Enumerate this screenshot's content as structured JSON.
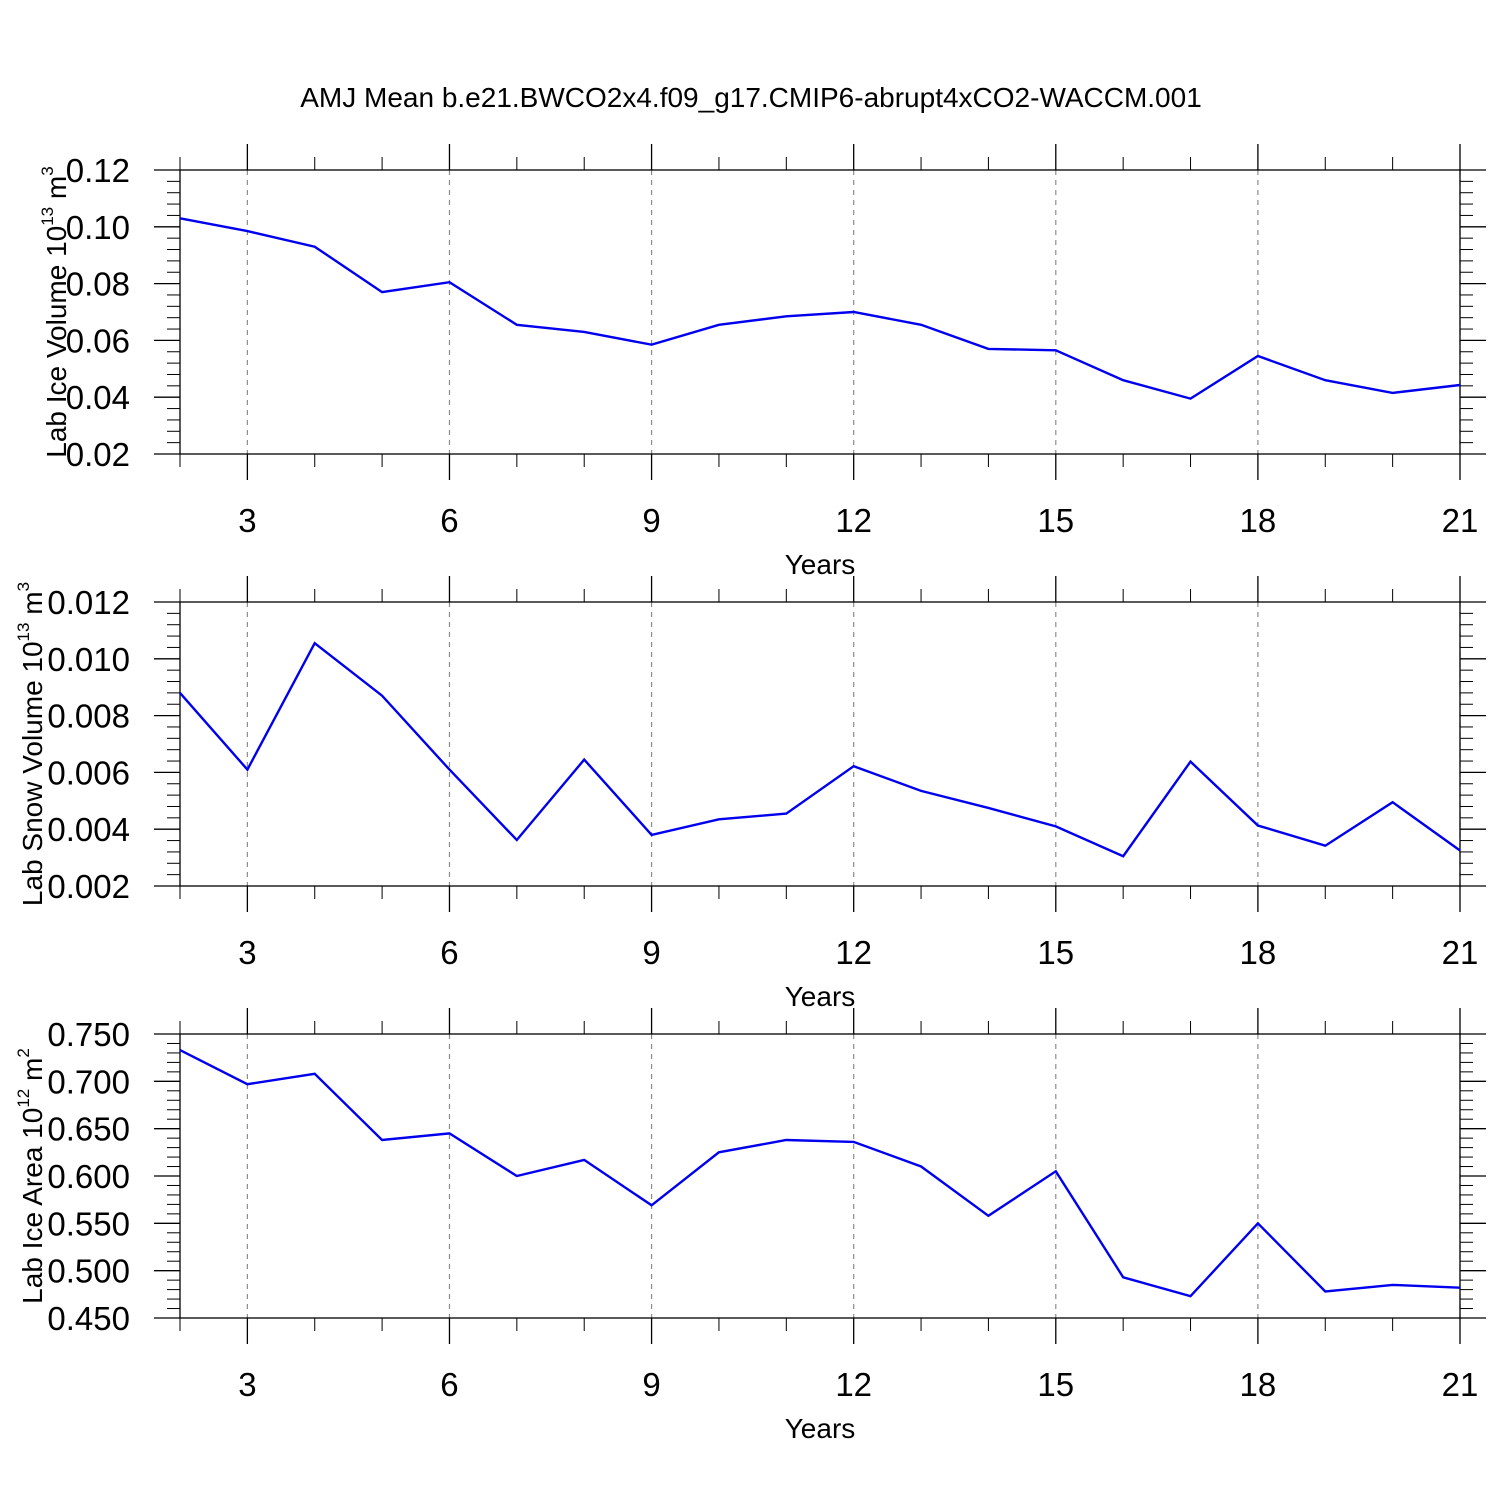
{
  "page": {
    "title": "AMJ Mean b.e21.BWCO2x4.f09_g17.CMIP6-abrupt4xCO2-WACCM.001"
  },
  "colors": {
    "series": "#0000ee",
    "grid": "#8c8c8c",
    "axis": "#000000"
  },
  "chart_data": [
    {
      "type": "line",
      "id": "ice-volume",
      "xlabel": "Years",
      "ylabel": {
        "text": "Lab Ice Volume 10",
        "sup": "13",
        "unit": " m",
        "unit_sup": "3"
      },
      "xlim": [
        2,
        21
      ],
      "ylim": [
        0.02,
        0.12
      ],
      "x_ticks": [
        3,
        6,
        9,
        12,
        15,
        18,
        21
      ],
      "y_ticks": [
        0.02,
        0.04,
        0.06,
        0.08,
        0.1,
        0.12
      ],
      "y_tick_labels": [
        "0.02",
        "0.04",
        "0.06",
        "0.08",
        "0.10",
        "0.12"
      ],
      "grid": "vertical dashed at major x ticks",
      "x": [
        2,
        3,
        4,
        5,
        6,
        7,
        8,
        9,
        10,
        11,
        12,
        13,
        14,
        15,
        16,
        17,
        18,
        19,
        20,
        21
      ],
      "values": [
        0.103,
        0.0985,
        0.093,
        0.077,
        0.0805,
        0.0655,
        0.063,
        0.0585,
        0.0655,
        0.0685,
        0.07,
        0.0655,
        0.057,
        0.0565,
        0.046,
        0.0395,
        0.0545,
        0.046,
        0.0415,
        0.0443
      ]
    },
    {
      "type": "line",
      "id": "snow-volume",
      "xlabel": "Years",
      "ylabel": {
        "text": "Lab Snow Volume 10",
        "sup": "13",
        "unit": " m",
        "unit_sup": "3"
      },
      "xlim": [
        2,
        21
      ],
      "ylim": [
        0.002,
        0.012
      ],
      "x_ticks": [
        3,
        6,
        9,
        12,
        15,
        18,
        21
      ],
      "y_ticks": [
        0.002,
        0.004,
        0.006,
        0.008,
        0.01,
        0.012
      ],
      "y_tick_labels": [
        "0.002",
        "0.004",
        "0.006",
        "0.008",
        "0.010",
        "0.012"
      ],
      "grid": "vertical dashed at major x ticks",
      "x": [
        2,
        3,
        4,
        5,
        6,
        7,
        8,
        9,
        10,
        11,
        12,
        13,
        14,
        15,
        16,
        17,
        18,
        19,
        20,
        21
      ],
      "values": [
        0.0088,
        0.0061,
        0.01055,
        0.0087,
        0.0061,
        0.00362,
        0.00645,
        0.0038,
        0.00435,
        0.00455,
        0.00622,
        0.00535,
        0.00475,
        0.0041,
        0.00305,
        0.00638,
        0.00413,
        0.00342,
        0.00495,
        0.00325
      ]
    },
    {
      "type": "line",
      "id": "ice-area",
      "xlabel": "Years",
      "ylabel": {
        "text": "Lab Ice Area 10",
        "sup": "12",
        "unit": " m",
        "unit_sup": "2"
      },
      "xlim": [
        2,
        21
      ],
      "ylim": [
        0.45,
        0.75
      ],
      "x_ticks": [
        3,
        6,
        9,
        12,
        15,
        18,
        21
      ],
      "y_ticks": [
        0.45,
        0.5,
        0.55,
        0.6,
        0.65,
        0.7,
        0.75
      ],
      "y_tick_labels": [
        "0.450",
        "0.500",
        "0.550",
        "0.600",
        "0.650",
        "0.700",
        "0.750"
      ],
      "grid": "vertical dashed at major x ticks",
      "x": [
        2,
        3,
        4,
        5,
        6,
        7,
        8,
        9,
        10,
        11,
        12,
        13,
        14,
        15,
        16,
        17,
        18,
        19,
        20,
        21
      ],
      "values": [
        0.733,
        0.697,
        0.708,
        0.638,
        0.645,
        0.6,
        0.617,
        0.569,
        0.625,
        0.638,
        0.636,
        0.61,
        0.558,
        0.605,
        0.493,
        0.473,
        0.55,
        0.478,
        0.485,
        0.482
      ]
    }
  ]
}
